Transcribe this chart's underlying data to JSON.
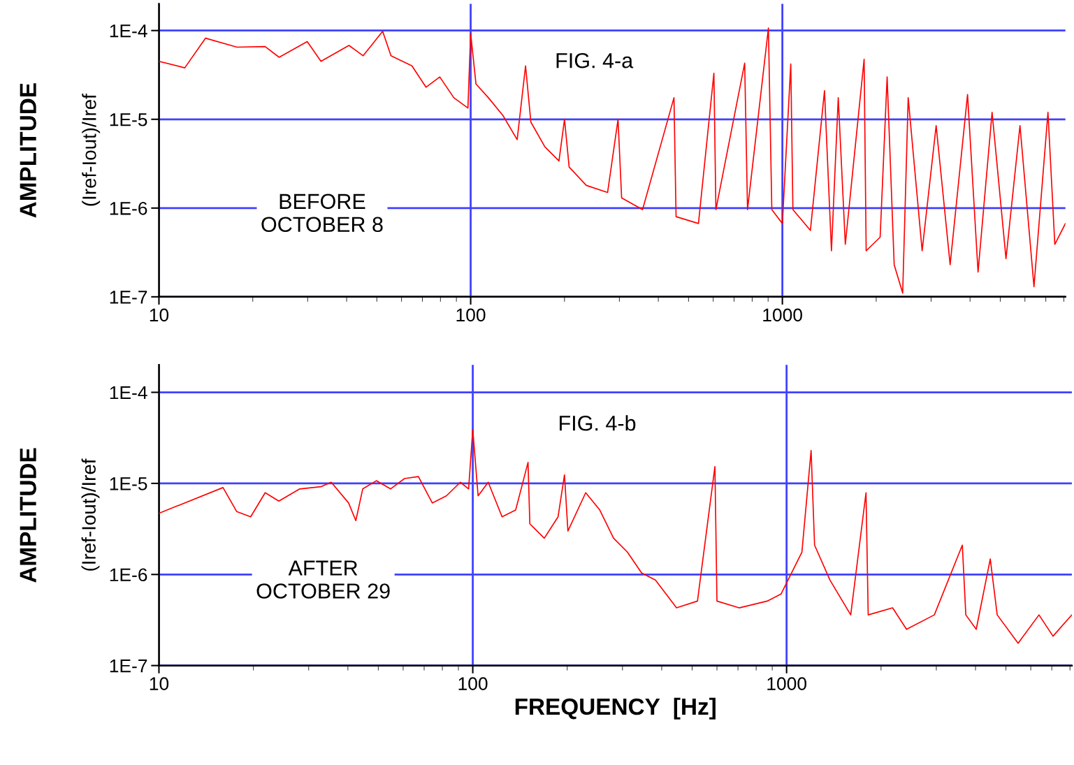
{
  "chart_data": [
    {
      "type": "line",
      "ylabel": "AMPLITUDE",
      "annotations": [
        "(Iref-Iout)/Iref",
        "FIG. 4-a",
        "BEFORE\nOCTOBER 8"
      ],
      "log": "xy",
      "grid": true,
      "xlim": [
        10,
        8091
      ],
      "ylim": [
        1e-07,
        0.0002
      ],
      "xticks": [
        10,
        100,
        1000
      ],
      "yticks": [
        {
          "value": 1e-07,
          "label": "1E-7"
        },
        {
          "value": 1e-06,
          "label": "1E-6"
        },
        {
          "value": 1e-05,
          "label": "1E-5"
        },
        {
          "value": 0.0001,
          "label": "1E-4"
        }
      ],
      "series": [
        {
          "color": "#ff0000",
          "x": [
            10,
            12.1,
            14.1,
            17.8,
            21.9,
            24.3,
            29.9,
            33.1,
            40.7,
            45.2,
            52.2,
            55.5,
            64.8,
            71.9,
            79.6,
            88.3,
            98,
            100,
            104,
            114,
            127,
            141,
            150,
            156,
            173,
            192,
            200,
            207,
            235,
            275,
            297,
            305,
            356,
            449,
            456,
            538,
            603,
            612,
            757,
            773,
            902,
            925,
            1000,
            1064,
            1081,
            1230,
            1365,
            1437,
            1511,
            1592,
            1829,
            1857,
            2059,
            2168,
            2284,
            2432,
            2533,
            2808,
            3114,
            3453,
            3927,
            4244,
            4707,
            5217,
            5785,
            6415,
            7113,
            7482,
            8091
          ],
          "values": [
            4.5e-05,
            3.8e-05,
            8.2e-05,
            6.5e-05,
            6.6e-05,
            5e-05,
            7.5e-05,
            4.5e-05,
            6.8e-05,
            5.2e-05,
            9.8e-05,
            5.2e-05,
            4e-05,
            2.3e-05,
            3e-05,
            1.75e-05,
            1.34e-05,
            9.3e-05,
            2.5e-05,
            1.75e-05,
            1.1e-05,
            5.9e-06,
            4e-05,
            9.3e-06,
            4.9e-06,
            3.4e-06,
            1e-05,
            2.9e-06,
            1.8e-06,
            1.5e-06,
            1e-05,
            1.3e-06,
            9.6e-07,
            1.75e-05,
            8e-07,
            6.7e-07,
            3.3e-05,
            9.6e-07,
            4.3e-05,
            9.6e-07,
            0.000107,
            9.6e-07,
            6.7e-07,
            4.2e-05,
            9.6e-07,
            5.6e-07,
            2.1e-05,
            3.3e-07,
            1.75e-05,
            3.9e-07,
            4.75e-05,
            3.3e-07,
            4.7e-07,
            3e-05,
            2.3e-07,
            1.1e-07,
            1.75e-05,
            3.3e-07,
            8.5e-06,
            2.3e-07,
            1.9e-05,
            1.9e-07,
            1.2e-05,
            2.7e-07,
            8.5e-06,
            1.3e-07,
            1.2e-05,
            3.9e-07,
            6.7e-07
          ]
        }
      ]
    },
    {
      "type": "line",
      "ylabel": "AMPLITUDE",
      "xlabel": "FREQUENCY  [Hz]",
      "annotations": [
        "(Iref-Iout)/Iref",
        "FIG. 4-b",
        "AFTER\nOCTOBER 29"
      ],
      "log": "xy",
      "grid": true,
      "xlim": [
        10,
        8110
      ],
      "ylim": [
        1e-07,
        0.0002
      ],
      "xticks": [
        10,
        100,
        1000
      ],
      "yticks": [
        {
          "value": 1e-07,
          "label": "1E-7"
        },
        {
          "value": 1e-06,
          "label": "1E-6"
        },
        {
          "value": 1e-05,
          "label": "1E-5"
        },
        {
          "value": 0.0001,
          "label": "1E-4"
        }
      ],
      "series": [
        {
          "color": "#ff0000",
          "x": [
            10,
            16.0,
            17.7,
            19.6,
            21.8,
            24.1,
            28.1,
            32.8,
            35.4,
            40.2,
            42.4,
            44.6,
            49.3,
            54.7,
            60.6,
            67.1,
            74.3,
            82.4,
            91.3,
            97,
            100,
            104,
            112,
            124,
            137,
            150,
            152,
            169,
            187,
            196,
            201,
            229,
            254,
            281,
            311,
            345,
            382,
            446,
            520,
            591,
            600,
            706,
            867,
            960,
            1119,
            1197,
            1228,
            1374,
            1601,
            1791,
            1820,
            2177,
            2411,
            2957,
            3631,
            3725,
            4021,
            4457,
            4690,
            5467,
            6372,
            7063,
            8110
          ],
          "values": [
            4.7e-06,
            9e-06,
            4.9e-06,
            4.3e-06,
            7.9e-06,
            6.4e-06,
            8.7e-06,
            9.2e-06,
            1.03e-05,
            6.1e-06,
            3.9e-06,
            8.7e-06,
            1.07e-05,
            8.7e-06,
            1.13e-05,
            1.19e-05,
            6.1e-06,
            7.3e-06,
            1.03e-05,
            8.7e-06,
            3.9e-05,
            7.3e-06,
            1.03e-05,
            4.3e-06,
            5.1e-06,
            1.7e-05,
            3.6e-06,
            2.5e-06,
            4.3e-06,
            1.24e-05,
            3e-06,
            7.9e-06,
            5.1e-06,
            2.5e-06,
            1.76e-06,
            1.04e-06,
            8.7e-07,
            4.3e-07,
            5.1e-07,
            1.53e-05,
            5.1e-07,
            4.3e-07,
            5.1e-07,
            6.1e-07,
            1.76e-06,
            2.3e-05,
            2.1e-06,
            8.7e-07,
            3.6e-07,
            7.9e-06,
            3.6e-07,
            4.3e-07,
            2.5e-07,
            3.6e-07,
            2.1e-06,
            3.6e-07,
            2.5e-07,
            1.48e-06,
            3.6e-07,
            1.76e-07,
            3.6e-07,
            2.1e-07,
            3.6e-07
          ]
        }
      ]
    }
  ]
}
